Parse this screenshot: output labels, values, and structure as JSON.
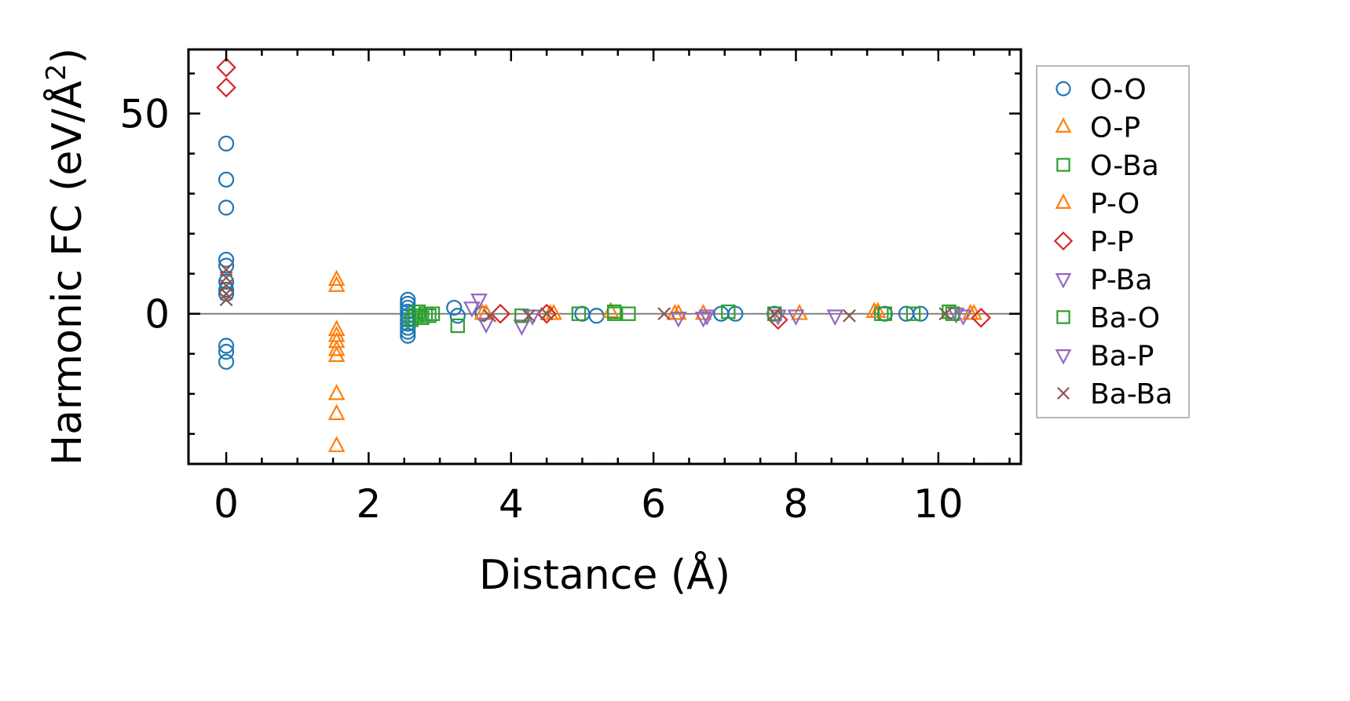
{
  "chart_data": {
    "type": "scatter",
    "title": "",
    "xlabel": "Distance (Å)",
    "ylabel_main": "Harmonic FC (eV/Å",
    "ylabel_sup": "2",
    "ylabel_close": ")",
    "xlim": [
      -0.53,
      11.16
    ],
    "ylim": [
      -37.5,
      66.0
    ],
    "xticks": [
      0,
      2,
      4,
      6,
      8,
      10
    ],
    "xtick_labels": [
      "0",
      "2",
      "4",
      "6",
      "8",
      "10"
    ],
    "yticks": [
      0,
      50
    ],
    "ytick_labels": [
      "0",
      "50"
    ],
    "minor_xticks": [
      0,
      0.5,
      1,
      1.5,
      2,
      2.5,
      3,
      3.5,
      4,
      4.5,
      5,
      5.5,
      6,
      6.5,
      7,
      7.5,
      8,
      8.5,
      9,
      9.5,
      10,
      10.5,
      11
    ],
    "minor_yticks": [
      -30,
      -20,
      -10,
      0,
      10,
      20,
      30,
      40,
      50,
      60
    ],
    "zero_line": true,
    "grid": false,
    "legend_position": "outside-right",
    "series": [
      {
        "name": "O-O",
        "marker": "circle",
        "color": "#1f77b4",
        "x": [
          0,
          0,
          0,
          0,
          0,
          0,
          0,
          0,
          0,
          0,
          0,
          2.55,
          2.55,
          2.55,
          2.55,
          2.55,
          2.55,
          2.55,
          2.55,
          2.55,
          2.55,
          3.2,
          3.25,
          3.6,
          5.0,
          5.2,
          6.95,
          7.15,
          7.7,
          9.25,
          9.55,
          9.75
        ],
        "y": [
          42.5,
          33.5,
          26.5,
          13.5,
          12.0,
          8.0,
          6.0,
          5.0,
          -8.0,
          -9.5,
          -12.0,
          3.5,
          2.5,
          1.5,
          0.5,
          -0.5,
          -1.5,
          -2.5,
          -3.5,
          -4.5,
          -5.5,
          1.5,
          -0.5,
          0.0,
          0.0,
          -0.5,
          0.0,
          0.0,
          0.0,
          0.0,
          0.0,
          0.0
        ]
      },
      {
        "name": "O-P",
        "marker": "triangle-up",
        "color": "#ff7f0e",
        "x": [
          1.55,
          1.55,
          1.55,
          1.55,
          1.55,
          1.55,
          1.55,
          1.55,
          1.55,
          1.55,
          3.65,
          4.6,
          5.4,
          6.35,
          6.7,
          8.05,
          9.15,
          10.45
        ],
        "y": [
          8.5,
          7.0,
          -4.0,
          -5.5,
          -7.0,
          -9.0,
          -10.5,
          -20.0,
          -25.0,
          -33.0,
          0.0,
          0.0,
          0.5,
          0.0,
          0.0,
          0.0,
          0.5,
          0.0
        ]
      },
      {
        "name": "O-Ba",
        "marker": "square",
        "color": "#2ca02c",
        "x": [
          2.6,
          2.65,
          2.7,
          2.75,
          2.8,
          2.9,
          3.25,
          4.95,
          5.45,
          5.65,
          7.05,
          7.7,
          9.2,
          9.65,
          10.15
        ],
        "y": [
          -1.5,
          -0.5,
          0.5,
          -1.0,
          0.0,
          0.0,
          -3.0,
          0.0,
          0.5,
          0.0,
          0.5,
          0.0,
          0.0,
          0.0,
          0.5
        ]
      },
      {
        "name": "P-O",
        "marker": "triangle-up",
        "color": "#ff7f0e",
        "x": [
          3.6,
          4.55,
          6.3,
          9.1,
          10.5
        ],
        "y": [
          0.0,
          0.0,
          0.0,
          0.5,
          0.0
        ]
      },
      {
        "name": "P-P",
        "marker": "diamond",
        "color": "#d62728",
        "x": [
          0,
          0,
          3.85,
          4.5,
          7.75,
          10.6
        ],
        "y": [
          61.5,
          56.5,
          0.0,
          0.0,
          -1.5,
          -1.0
        ]
      },
      {
        "name": "P-Ba",
        "marker": "triangle-down",
        "color": "#9467bd",
        "x": [
          3.45,
          3.55,
          3.65,
          4.15,
          6.35,
          6.7,
          8.0,
          8.55,
          10.25
        ],
        "y": [
          1.5,
          3.5,
          -2.5,
          -3.0,
          -1.0,
          -1.0,
          -0.5,
          -0.5,
          0.0
        ]
      },
      {
        "name": "Ba-O",
        "marker": "square",
        "color": "#2ca02c",
        "x": [
          2.85,
          4.15,
          5.45,
          7.7,
          9.25,
          10.2
        ],
        "y": [
          -0.5,
          -0.5,
          0.0,
          0.0,
          0.0,
          0.0
        ]
      },
      {
        "name": "Ba-P",
        "marker": "triangle-down",
        "color": "#9467bd",
        "x": [
          4.3,
          6.75,
          7.75,
          10.35
        ],
        "y": [
          -0.5,
          -0.5,
          -0.5,
          -0.5
        ]
      },
      {
        "name": "Ba-Ba",
        "marker": "x",
        "color": "#8c564b",
        "x": [
          0,
          0,
          0,
          0,
          0,
          3.7,
          4.25,
          4.5,
          6.15,
          7.7,
          8.75,
          10.1
        ],
        "y": [
          11.0,
          9.0,
          7.0,
          5.0,
          3.5,
          -0.5,
          -0.5,
          0.0,
          0.0,
          0.0,
          -0.5,
          0.0
        ]
      }
    ]
  }
}
